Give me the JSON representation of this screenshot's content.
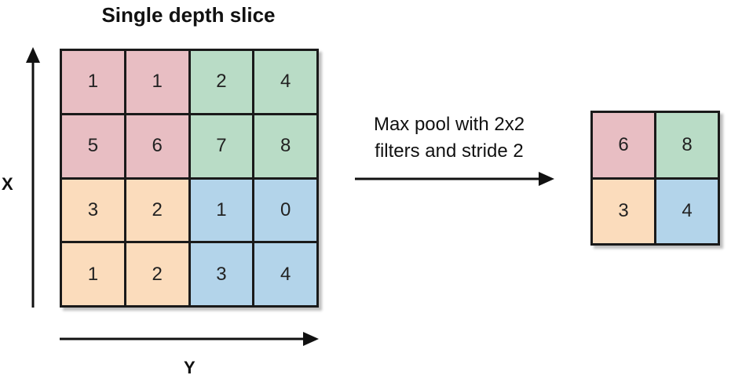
{
  "title": "Single depth slice",
  "axes": {
    "x_label": "X",
    "y_label": "Y"
  },
  "operation": {
    "line1": "Max pool with 2x2",
    "line2": "filters and stride 2"
  },
  "colors": {
    "red": "#e8bec3",
    "green": "#b9dcc6",
    "orange": "#fbdcbc",
    "blue": "#b3d4ea",
    "border": "#1a1a1a"
  },
  "input_grid": [
    [
      {
        "value": "1",
        "color": "red"
      },
      {
        "value": "1",
        "color": "red"
      },
      {
        "value": "2",
        "color": "green"
      },
      {
        "value": "4",
        "color": "green"
      }
    ],
    [
      {
        "value": "5",
        "color": "red"
      },
      {
        "value": "6",
        "color": "red"
      },
      {
        "value": "7",
        "color": "green"
      },
      {
        "value": "8",
        "color": "green"
      }
    ],
    [
      {
        "value": "3",
        "color": "orange"
      },
      {
        "value": "2",
        "color": "orange"
      },
      {
        "value": "1",
        "color": "blue"
      },
      {
        "value": "0",
        "color": "blue"
      }
    ],
    [
      {
        "value": "1",
        "color": "orange"
      },
      {
        "value": "2",
        "color": "orange"
      },
      {
        "value": "3",
        "color": "blue"
      },
      {
        "value": "4",
        "color": "blue"
      }
    ]
  ],
  "output_grid": [
    [
      {
        "value": "6",
        "color": "red"
      },
      {
        "value": "8",
        "color": "green"
      }
    ],
    [
      {
        "value": "3",
        "color": "orange"
      },
      {
        "value": "4",
        "color": "blue"
      }
    ]
  ]
}
